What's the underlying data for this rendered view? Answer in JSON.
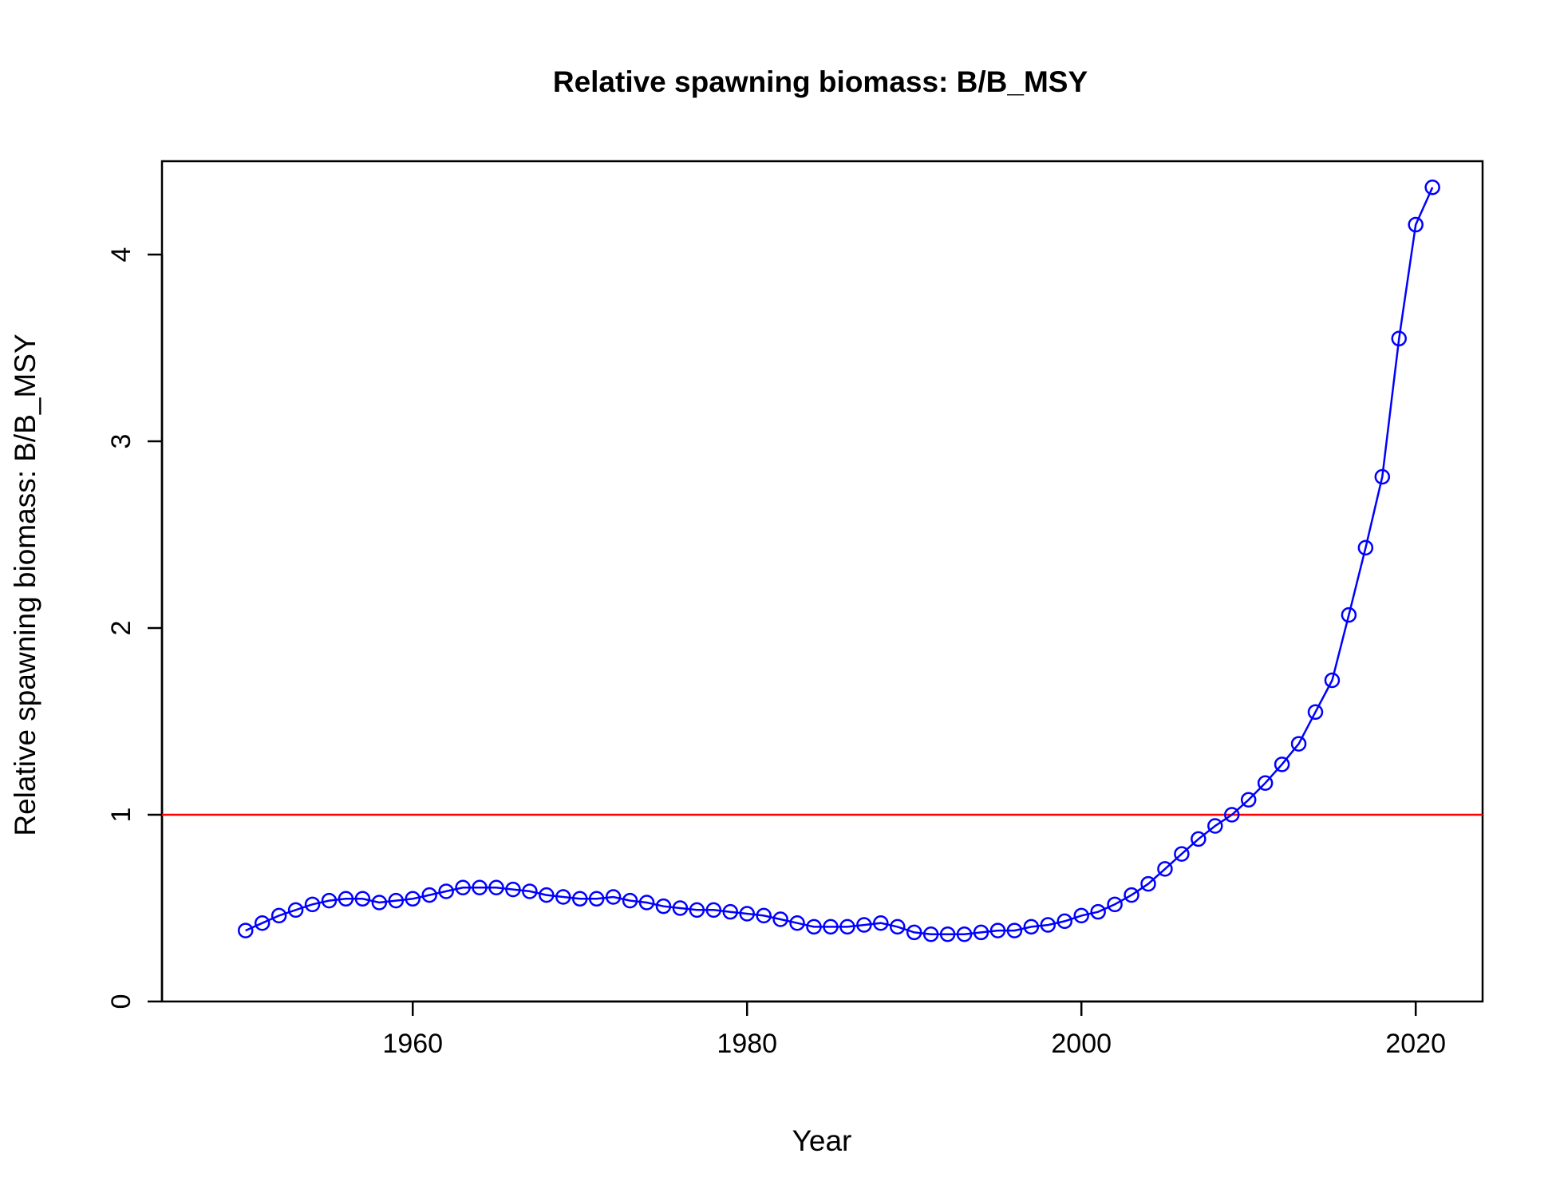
{
  "chart_data": {
    "type": "line",
    "title": "Relative spawning biomass: B/B_MSY",
    "xlabel": "Year",
    "ylabel": "Relative spawning biomass: B/B_MSY",
    "xlim": [
      1945,
      2024
    ],
    "ylim": [
      0,
      4.5
    ],
    "xticks": [
      1960,
      1980,
      2000,
      2020
    ],
    "yticks": [
      0,
      1,
      2,
      3,
      4
    ],
    "grid": false,
    "reference_line": {
      "y": 1,
      "color": "#ff0000"
    },
    "series": [
      {
        "color": "#0000ff",
        "marker": "open-circle",
        "x": [
          1950,
          1951,
          1952,
          1953,
          1954,
          1955,
          1956,
          1957,
          1958,
          1959,
          1960,
          1961,
          1962,
          1963,
          1964,
          1965,
          1966,
          1967,
          1968,
          1969,
          1970,
          1971,
          1972,
          1973,
          1974,
          1975,
          1976,
          1977,
          1978,
          1979,
          1980,
          1981,
          1982,
          1983,
          1984,
          1985,
          1986,
          1987,
          1988,
          1989,
          1990,
          1991,
          1992,
          1993,
          1994,
          1995,
          1996,
          1997,
          1998,
          1999,
          2000,
          2001,
          2002,
          2003,
          2004,
          2005,
          2006,
          2007,
          2008,
          2009,
          2010,
          2011,
          2012,
          2013,
          2014,
          2015,
          2016,
          2017,
          2018,
          2019,
          2020,
          2021
        ],
        "y": [
          0.38,
          0.42,
          0.46,
          0.49,
          0.52,
          0.54,
          0.55,
          0.55,
          0.53,
          0.54,
          0.55,
          0.57,
          0.59,
          0.61,
          0.61,
          0.61,
          0.6,
          0.59,
          0.57,
          0.56,
          0.55,
          0.55,
          0.56,
          0.54,
          0.53,
          0.51,
          0.5,
          0.49,
          0.49,
          0.48,
          0.47,
          0.46,
          0.44,
          0.42,
          0.4,
          0.4,
          0.4,
          0.41,
          0.42,
          0.4,
          0.37,
          0.36,
          0.36,
          0.36,
          0.37,
          0.38,
          0.38,
          0.4,
          0.41,
          0.43,
          0.46,
          0.48,
          0.52,
          0.57,
          0.63,
          0.71,
          0.79,
          0.87,
          0.94,
          1.0,
          1.08,
          1.17,
          1.27,
          1.38,
          1.55,
          1.72,
          2.07,
          2.43,
          2.81,
          3.55,
          4.16,
          4.36
        ]
      }
    ]
  }
}
